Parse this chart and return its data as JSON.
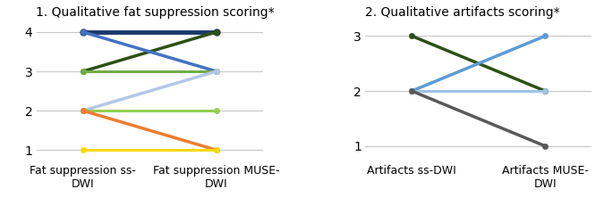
{
  "plot1": {
    "title": "1. Qualitative fat suppression scoring*",
    "xlabel_left": "Fat suppression ss-\nDWI",
    "xlabel_right": "Fat suppression MUSE-\nDWI",
    "ylim": [
      0.75,
      4.25
    ],
    "yticks": [
      1,
      2,
      3,
      4
    ],
    "lines": [
      {
        "start": 4,
        "end": 4,
        "color": "#8B7355",
        "lw": 2.2,
        "ms": 5
      },
      {
        "start": 4,
        "end": 4,
        "color": "#1A3A6B",
        "lw": 3.5,
        "ms": 6
      },
      {
        "start": 3,
        "end": 4,
        "color": "#2D5016",
        "lw": 2.5,
        "ms": 5
      },
      {
        "start": 4,
        "end": 3,
        "color": "#4472C4",
        "lw": 2.5,
        "ms": 5
      },
      {
        "start": 3,
        "end": 3,
        "color": "#70AD47",
        "lw": 2.2,
        "ms": 5
      },
      {
        "start": 2,
        "end": 3,
        "color": "#B4C7E7",
        "lw": 2.5,
        "ms": 5
      },
      {
        "start": 2,
        "end": 2,
        "color": "#92D050",
        "lw": 2.2,
        "ms": 5
      },
      {
        "start": 2,
        "end": 1,
        "color": "#ED7D31",
        "lw": 2.5,
        "ms": 5
      },
      {
        "start": 1,
        "end": 1,
        "color": "#FFD700",
        "lw": 2.2,
        "ms": 5
      }
    ]
  },
  "plot2": {
    "title": "2. Qualitative artifacts scoring*",
    "xlabel_left": "Artifacts ss-DWI",
    "xlabel_right": "Artifacts MUSE-\nDWI",
    "ylim": [
      0.75,
      3.25
    ],
    "yticks": [
      1,
      2,
      3
    ],
    "lines": [
      {
        "start": 3,
        "end": 2,
        "color": "#2D5016",
        "lw": 2.5,
        "ms": 5
      },
      {
        "start": 2,
        "end": 3,
        "color": "#5B9BD5",
        "lw": 2.5,
        "ms": 5
      },
      {
        "start": 2,
        "end": 2,
        "color": "#9DC3E6",
        "lw": 2.2,
        "ms": 5
      },
      {
        "start": 2,
        "end": 1,
        "color": "#595959",
        "lw": 2.5,
        "ms": 5
      }
    ]
  },
  "bg_color": "#FFFFFF",
  "grid_color": "#C8C8C8",
  "tick_fontsize": 10,
  "label_fontsize": 9,
  "title_fontsize": 10
}
